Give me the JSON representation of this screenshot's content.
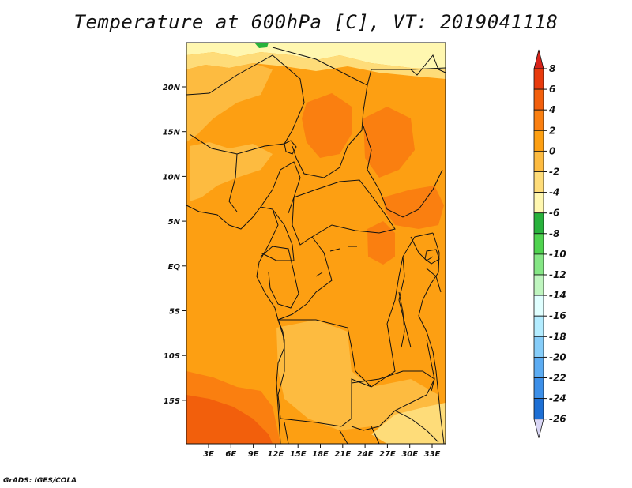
{
  "title": "Temperature at 600hPa [C], VT: 2019041118",
  "credit": "GrADS: IGES/COLA",
  "lat_labels": [
    "20N",
    "15N",
    "10N",
    "5N",
    "EQ",
    "5S",
    "10S",
    "15S"
  ],
  "lon_labels": [
    "3E",
    "6E",
    "9E",
    "12E",
    "15E",
    "18E",
    "21E",
    "24E",
    "27E",
    "30E",
    "33E"
  ],
  "colorbar": {
    "labels": [
      "8",
      "6",
      "4",
      "2",
      "0",
      "-2",
      "-4",
      "-6",
      "-8",
      "-10",
      "-12",
      "-14",
      "-16",
      "-18",
      "-20",
      "-22",
      "-24",
      "-26"
    ],
    "colors": [
      "#e83a0c",
      "#f25f0c",
      "#fa7f10",
      "#fd9f12",
      "#fdbb40",
      "#fedc79",
      "#fff7b0",
      "#28b23c",
      "#4fd34f",
      "#85e685",
      "#bff5bf",
      "#e0ffff",
      "#b3ecff",
      "#86cdf9",
      "#5cacf2",
      "#3c8fe8",
      "#1d6fd4",
      "#1c4fb8",
      "#122a98",
      "#0b0e6e",
      "#d6d6ff"
    ],
    "over_color": "#d8231a",
    "under_color": "#d9d6f5"
  },
  "field_colors": {
    "base": "#fd9f12",
    "warm": "#fa7f10",
    "hot": "#f25f0c",
    "mild": "#fdbb40",
    "cool": "#fedc79",
    "cold": "#fff7b0",
    "green": "#28b23c"
  }
}
